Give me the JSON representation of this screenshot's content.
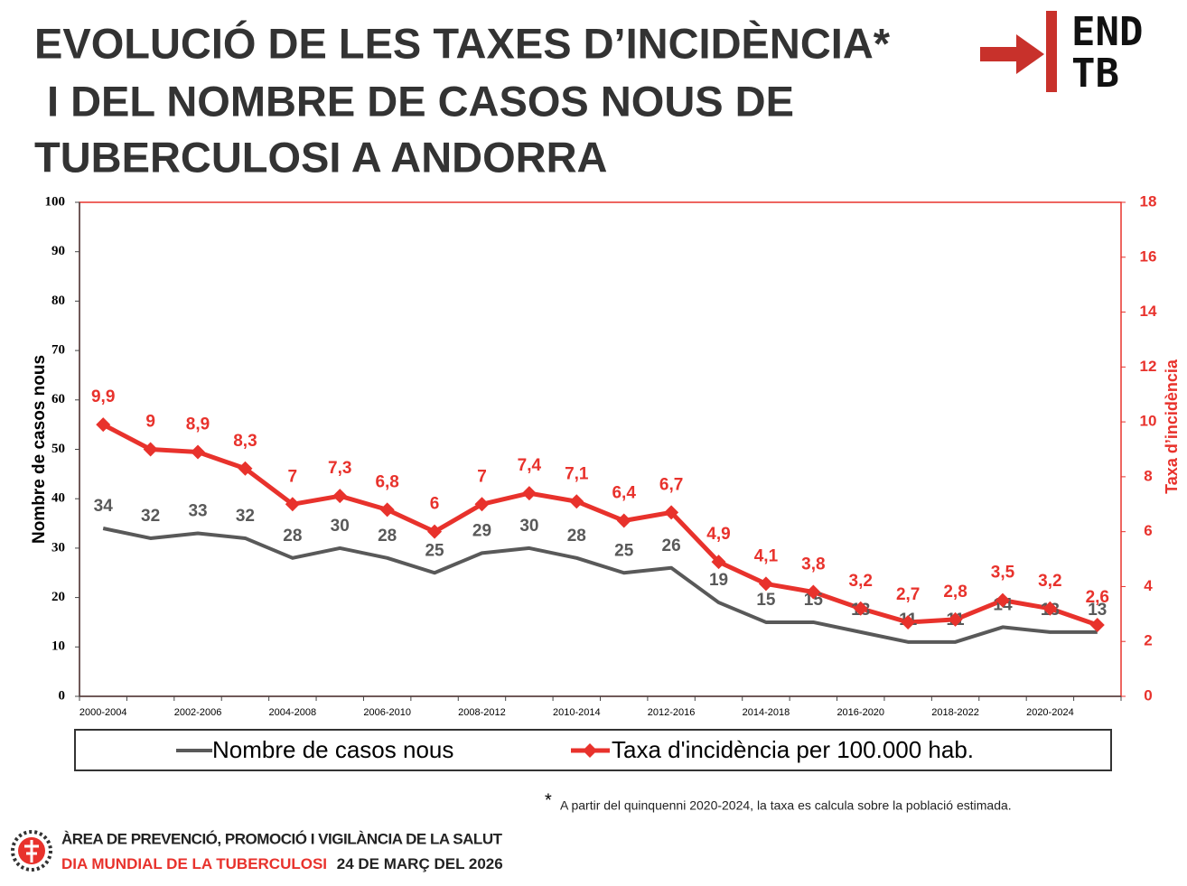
{
  "header": {
    "title": [
      "EVOLUCIÓ DE LES TAXES D’INCIDÈNCIA*",
      "I DEL NOMBRE DE CASOS NOUS DE",
      "TUBERCULOSI A ANDORRA"
    ],
    "logo": [
      "END",
      "TB"
    ]
  },
  "chart_data": {
    "type": "line",
    "categories": [
      "2000-2004",
      null,
      "2002-2006",
      null,
      "2004-2008",
      null,
      "2006-2010",
      null,
      "2008-2012",
      null,
      "2010-2014",
      null,
      "2012-2016",
      null,
      "2014-2018",
      null,
      "2016-2020",
      null,
      "2018-2022",
      null,
      "2020-2024",
      null
    ],
    "series": [
      {
        "name": "Nombre de casos nous",
        "color": "#595959",
        "values": [
          34,
          32,
          33,
          32,
          28,
          30,
          28,
          25,
          29,
          30,
          28,
          25,
          26,
          19,
          15,
          15,
          13,
          11,
          11,
          14,
          13,
          13
        ]
      },
      {
        "name": "Taxa d'incidència per 100.000 hab.",
        "color": "#e8322c",
        "axis": "y2",
        "marker": "diamond",
        "values": [
          9.9,
          9,
          8.9,
          8.3,
          7,
          7.3,
          6.8,
          6,
          7,
          7.4,
          7.1,
          6.4,
          6.7,
          4.9,
          4.1,
          3.8,
          3.2,
          2.7,
          2.8,
          3.5,
          3.2,
          2.6
        ],
        "value_labels": [
          "9,9",
          "9",
          "8,9",
          "8,3",
          "7",
          "7,3",
          "6,8",
          "6",
          "7",
          "7,4",
          "7,1",
          "6,4",
          "6,7",
          "4,9",
          "4,1",
          "3,8",
          "3,2",
          "2,7",
          "2,8",
          "3,5",
          "3,2",
          "2,6"
        ]
      }
    ],
    "ylabel": "Nombre de casos nous",
    "y2label": "Taxa d’incidència",
    "ylim": [
      0,
      100
    ],
    "yticks": [
      0,
      10,
      20,
      30,
      40,
      50,
      60,
      70,
      80,
      90,
      100
    ],
    "y2lim": [
      0,
      18
    ],
    "y2ticks": [
      0,
      2,
      4,
      6,
      8,
      10,
      12,
      14,
      16,
      18
    ],
    "grid": false,
    "legend": "bottom"
  },
  "footnote": {
    "mark": "*",
    "text": "A partir del quinquenni 2020-2024, la taxa es calcula sobre la població estimada."
  },
  "footer": {
    "line1": "ÀREA DE PREVENCIÓ, PROMOCIÓ I VIGILÀNCIA DE LA SALUT",
    "line2a": "DIA MUNDIAL DE LA TUBERCULOSI",
    "line2b": "24 DE MARÇ DEL 2026"
  }
}
